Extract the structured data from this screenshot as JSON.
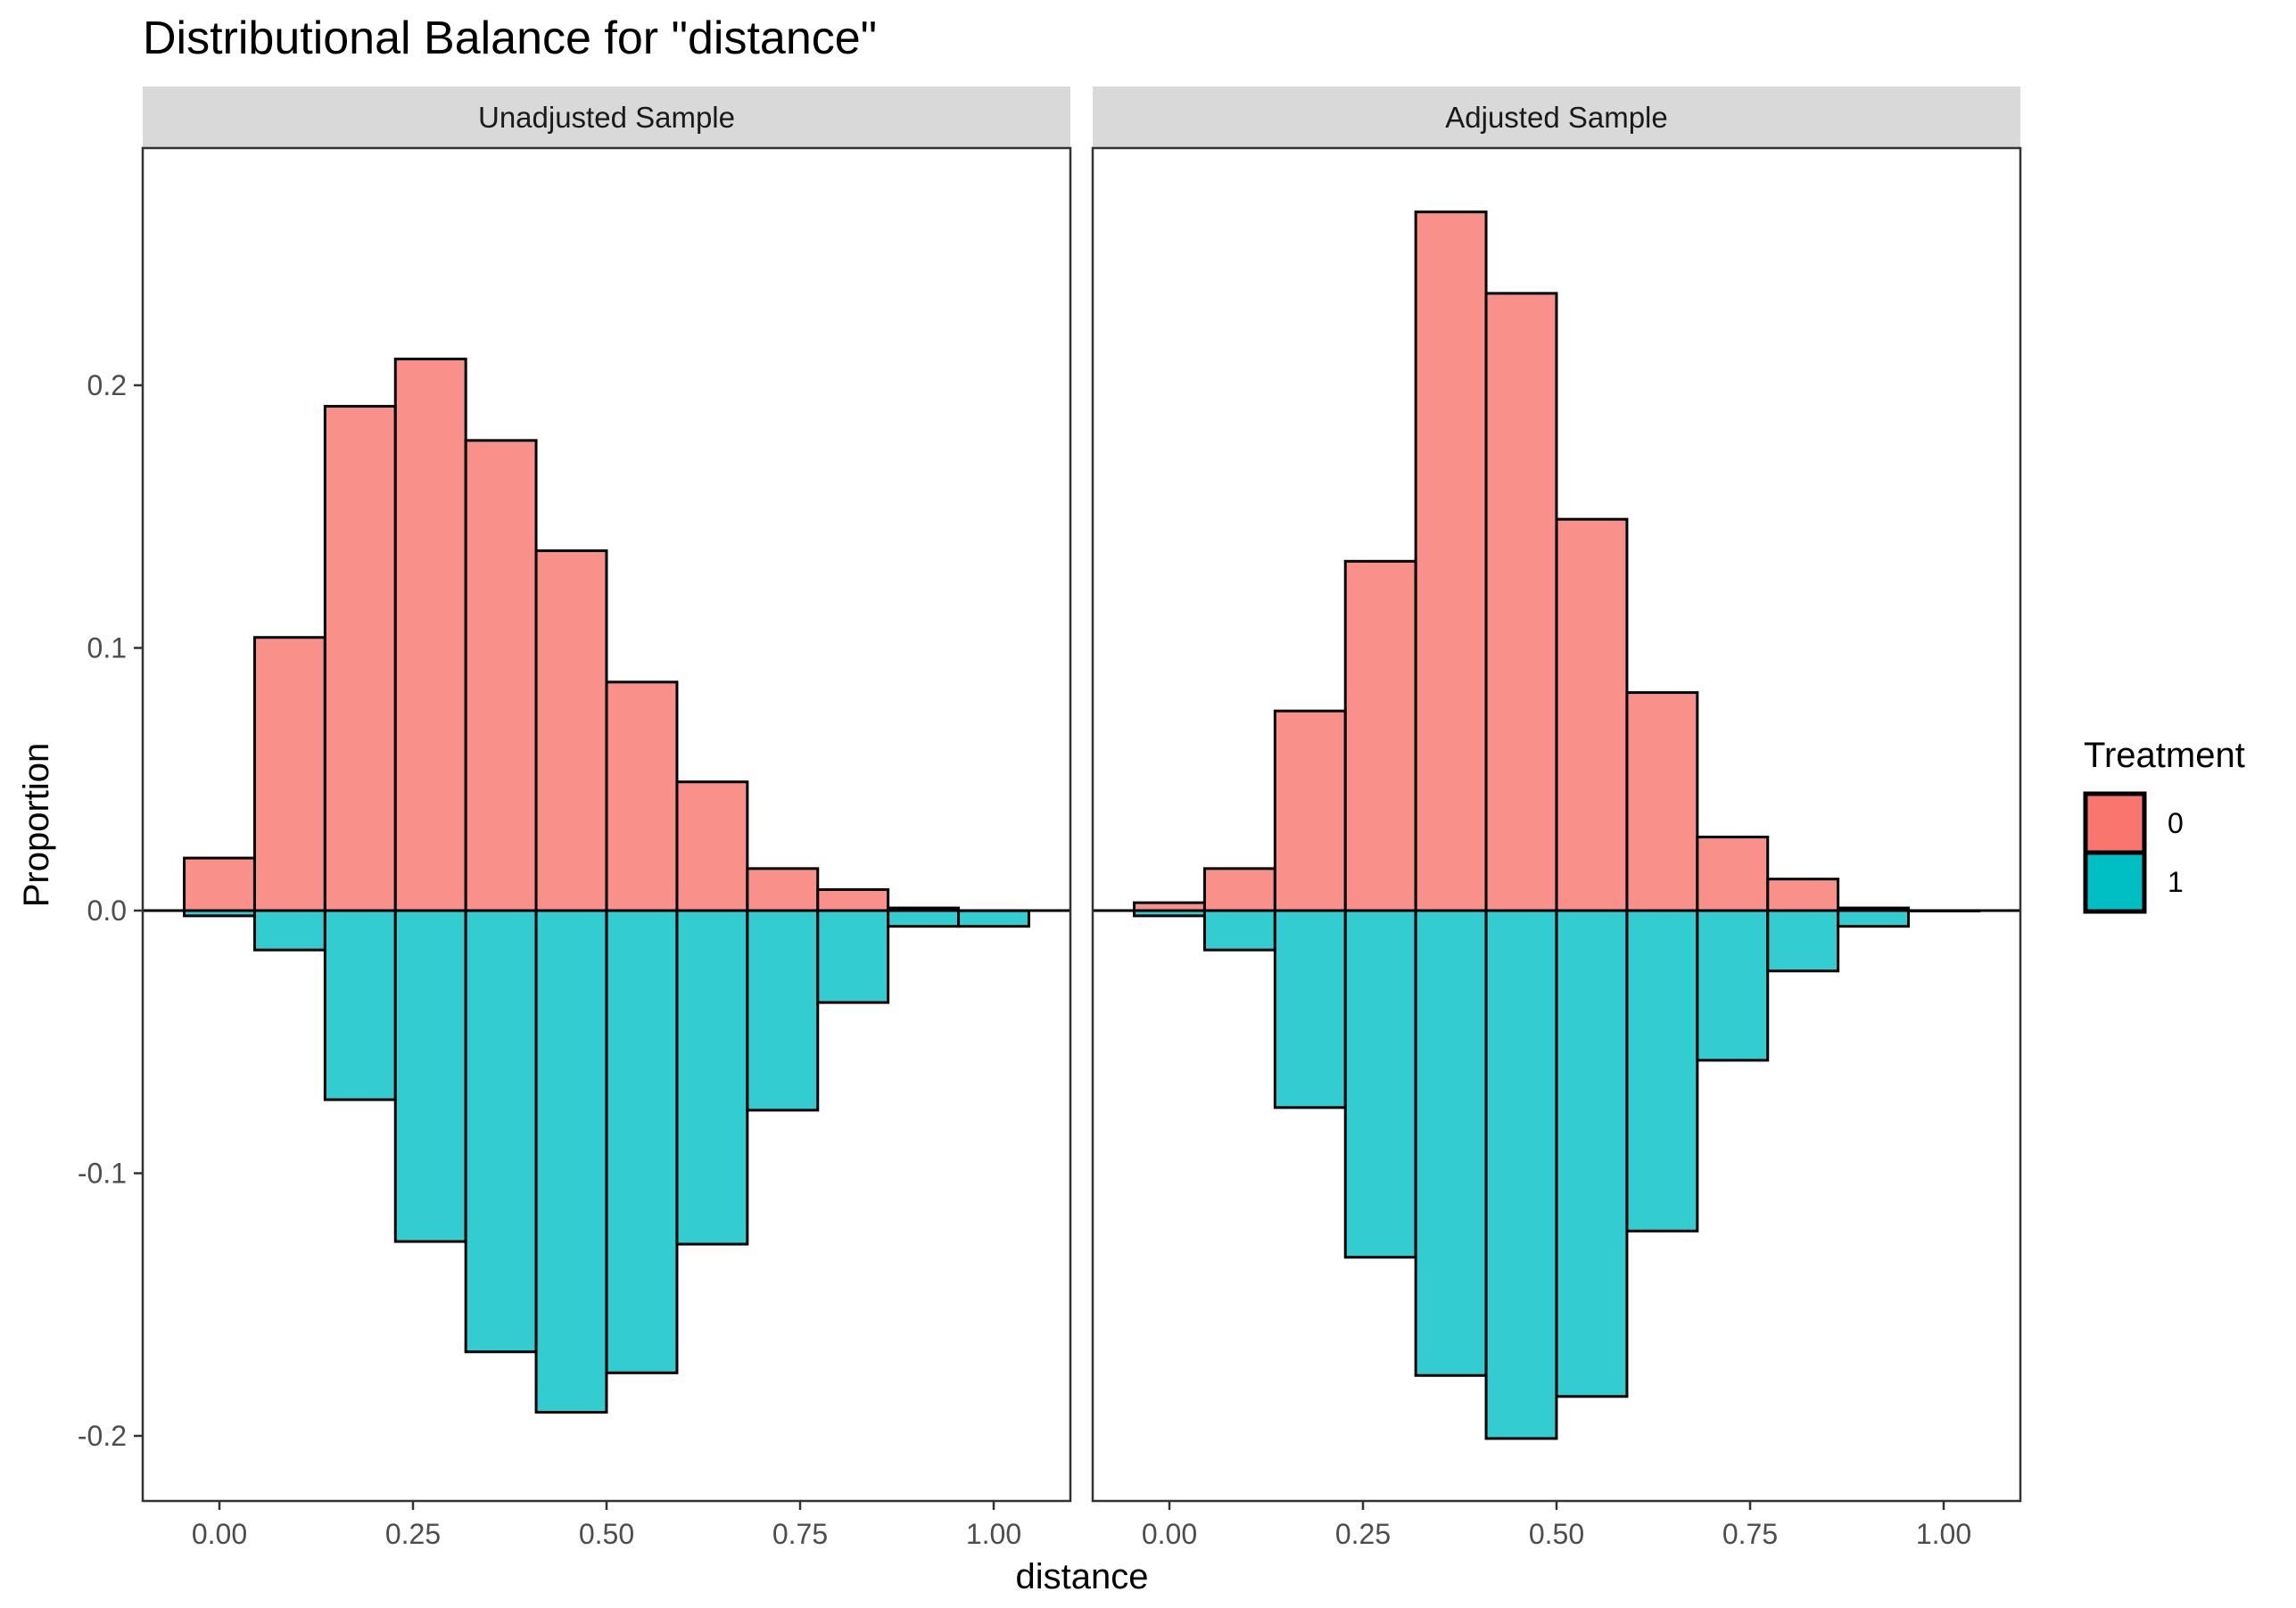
{
  "chart_data": {
    "type": "bar",
    "title": "Distributional Balance for \"distance\"",
    "xlabel": "distance",
    "ylabel": "Proportion",
    "x_ticks": [
      "0.00",
      "0.25",
      "0.50",
      "0.75",
      "1.00"
    ],
    "y_ticks": [
      "0.2",
      "0.1",
      "0.0",
      "-0.1",
      "-0.2"
    ],
    "xlim": [
      -0.1,
      1.1
    ],
    "ylim": [
      -0.225,
      0.28
    ],
    "legend": {
      "title": "Treatment",
      "placement": "right",
      "items": [
        {
          "label": "0",
          "color": "#F8766D"
        },
        {
          "label": "1",
          "color": "#00BFC4"
        }
      ]
    },
    "bin_width": 0.0909,
    "bin_centers": [
      0.0,
      0.0909,
      0.1818,
      0.2727,
      0.3636,
      0.4545,
      0.5455,
      0.6364,
      0.7273,
      0.8182,
      0.9091,
      1.0
    ],
    "grid": false,
    "panels": [
      {
        "strip": "Unadjusted Sample",
        "series": [
          {
            "name": "0",
            "direction": "up",
            "values": [
              0.02,
              0.104,
              0.192,
              0.21,
              0.179,
              0.137,
              0.087,
              0.049,
              0.016,
              0.008,
              0.001,
              0.0
            ]
          },
          {
            "name": "1",
            "direction": "down",
            "values": [
              0.002,
              0.015,
              0.072,
              0.126,
              0.168,
              0.191,
              0.176,
              0.127,
              0.076,
              0.035,
              0.006,
              0.006
            ]
          }
        ]
      },
      {
        "strip": "Adjusted Sample",
        "series": [
          {
            "name": "0",
            "direction": "up",
            "values": [
              0.003,
              0.016,
              0.076,
              0.133,
              0.266,
              0.235,
              0.149,
              0.083,
              0.028,
              0.012,
              0.001,
              0.0
            ]
          },
          {
            "name": "1",
            "direction": "down",
            "values": [
              0.002,
              0.015,
              0.075,
              0.132,
              0.177,
              0.201,
              0.185,
              0.122,
              0.057,
              0.023,
              0.006,
              0.0
            ]
          }
        ]
      }
    ]
  }
}
